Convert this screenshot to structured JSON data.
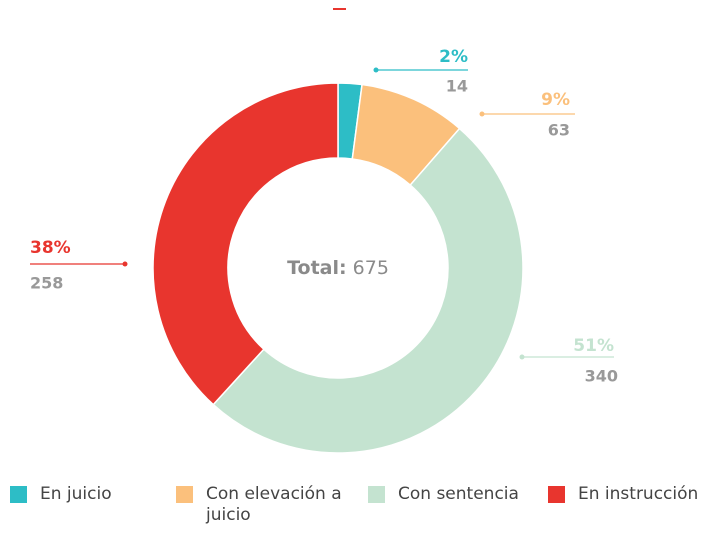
{
  "chart_data": {
    "type": "donut",
    "categories": [
      "En juicio",
      "Con elevación a juicio",
      "Con sentencia",
      "En instrucción"
    ],
    "values": [
      14,
      63,
      340,
      258
    ],
    "percent_labels": [
      "2%",
      "9%",
      "51%",
      "38%"
    ],
    "colors": [
      "#2dbdc6",
      "#fbc07c",
      "#c4e3d0",
      "#e8352e"
    ],
    "total_label": "Total:",
    "total": 675,
    "legend": "bottom"
  }
}
